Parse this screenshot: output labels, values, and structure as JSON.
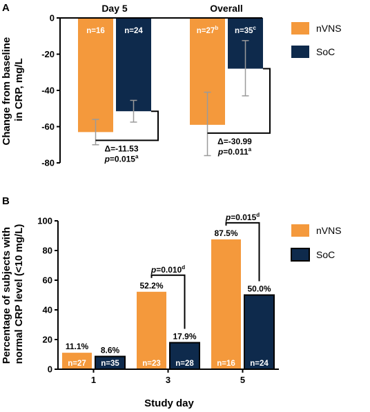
{
  "colors": {
    "nvns": "#F4993C",
    "soc": "#0E2A4C",
    "error": "#9a9a9a",
    "axis": "#000000"
  },
  "chart_data": [
    {
      "panel": "A",
      "type": "bar",
      "ylabel": "Change from baseline in CRP, mg/L",
      "ylabel_lines": [
        "Change from baseline",
        "in CRP, mg/L"
      ],
      "ylim": [
        -80,
        0
      ],
      "yticks": [
        0,
        -20,
        -40,
        -60,
        -80
      ],
      "categories": [
        "Day 5",
        "Overall"
      ],
      "series": [
        {
          "name": "nVNS",
          "values": [
            -63,
            -59
          ],
          "error_low": [
            -70,
            -76
          ],
          "error_high": [
            -56,
            -41
          ],
          "n_labels": [
            "n=16",
            "n=27"
          ],
          "n_sup": [
            "",
            "b"
          ]
        },
        {
          "name": "SoC",
          "values": [
            -51.5,
            -28
          ],
          "error_low": [
            -57.5,
            -43
          ],
          "error_high": [
            -45.5,
            -12.5
          ],
          "n_labels": [
            "n=24",
            "n=35"
          ],
          "n_sup": [
            "",
            "c"
          ]
        }
      ],
      "comparisons": [
        {
          "group": 0,
          "delta": "Δ=-11.53",
          "p_prefix": "p",
          "p_value": "=0.015",
          "p_sup": "a"
        },
        {
          "group": 1,
          "delta": "Δ=-30.99",
          "p_prefix": "p",
          "p_value": "=0.011",
          "p_sup": "a"
        }
      ],
      "legend": [
        "nVNS",
        "SoC"
      ],
      "legend_position": "right"
    },
    {
      "panel": "B",
      "type": "bar",
      "xlabel": "Study day",
      "ylabel": "Percentage of subjects with normal CRP level (<10 mg/L)",
      "ylabel_lines": [
        "Percentage of subjects with",
        "normal CRP level (<10 mg/L)"
      ],
      "ylim": [
        0,
        100
      ],
      "yticks": [
        0,
        20,
        40,
        60,
        80,
        100
      ],
      "categories": [
        "1",
        "3",
        "5"
      ],
      "series": [
        {
          "name": "nVNS",
          "values": [
            11.1,
            52.2,
            87.5
          ],
          "value_labels": [
            "11.1%",
            "52.2%",
            "87.5%"
          ],
          "n_labels": [
            "n=27",
            "n=23",
            "n=16"
          ]
        },
        {
          "name": "SoC",
          "values": [
            8.6,
            17.9,
            50.0
          ],
          "value_labels": [
            "8.6%",
            "17.9%",
            "50.0%"
          ],
          "n_labels": [
            "n=35",
            "n=28",
            "n=24"
          ]
        }
      ],
      "comparisons": [
        {
          "group": 1,
          "p_prefix": "p",
          "p_value": "=0.010",
          "p_sup": "d"
        },
        {
          "group": 2,
          "p_prefix": "p",
          "p_value": "=0.015",
          "p_sup": "d"
        }
      ],
      "legend": [
        "nVNS",
        "SoC"
      ],
      "legend_position": "right"
    }
  ]
}
